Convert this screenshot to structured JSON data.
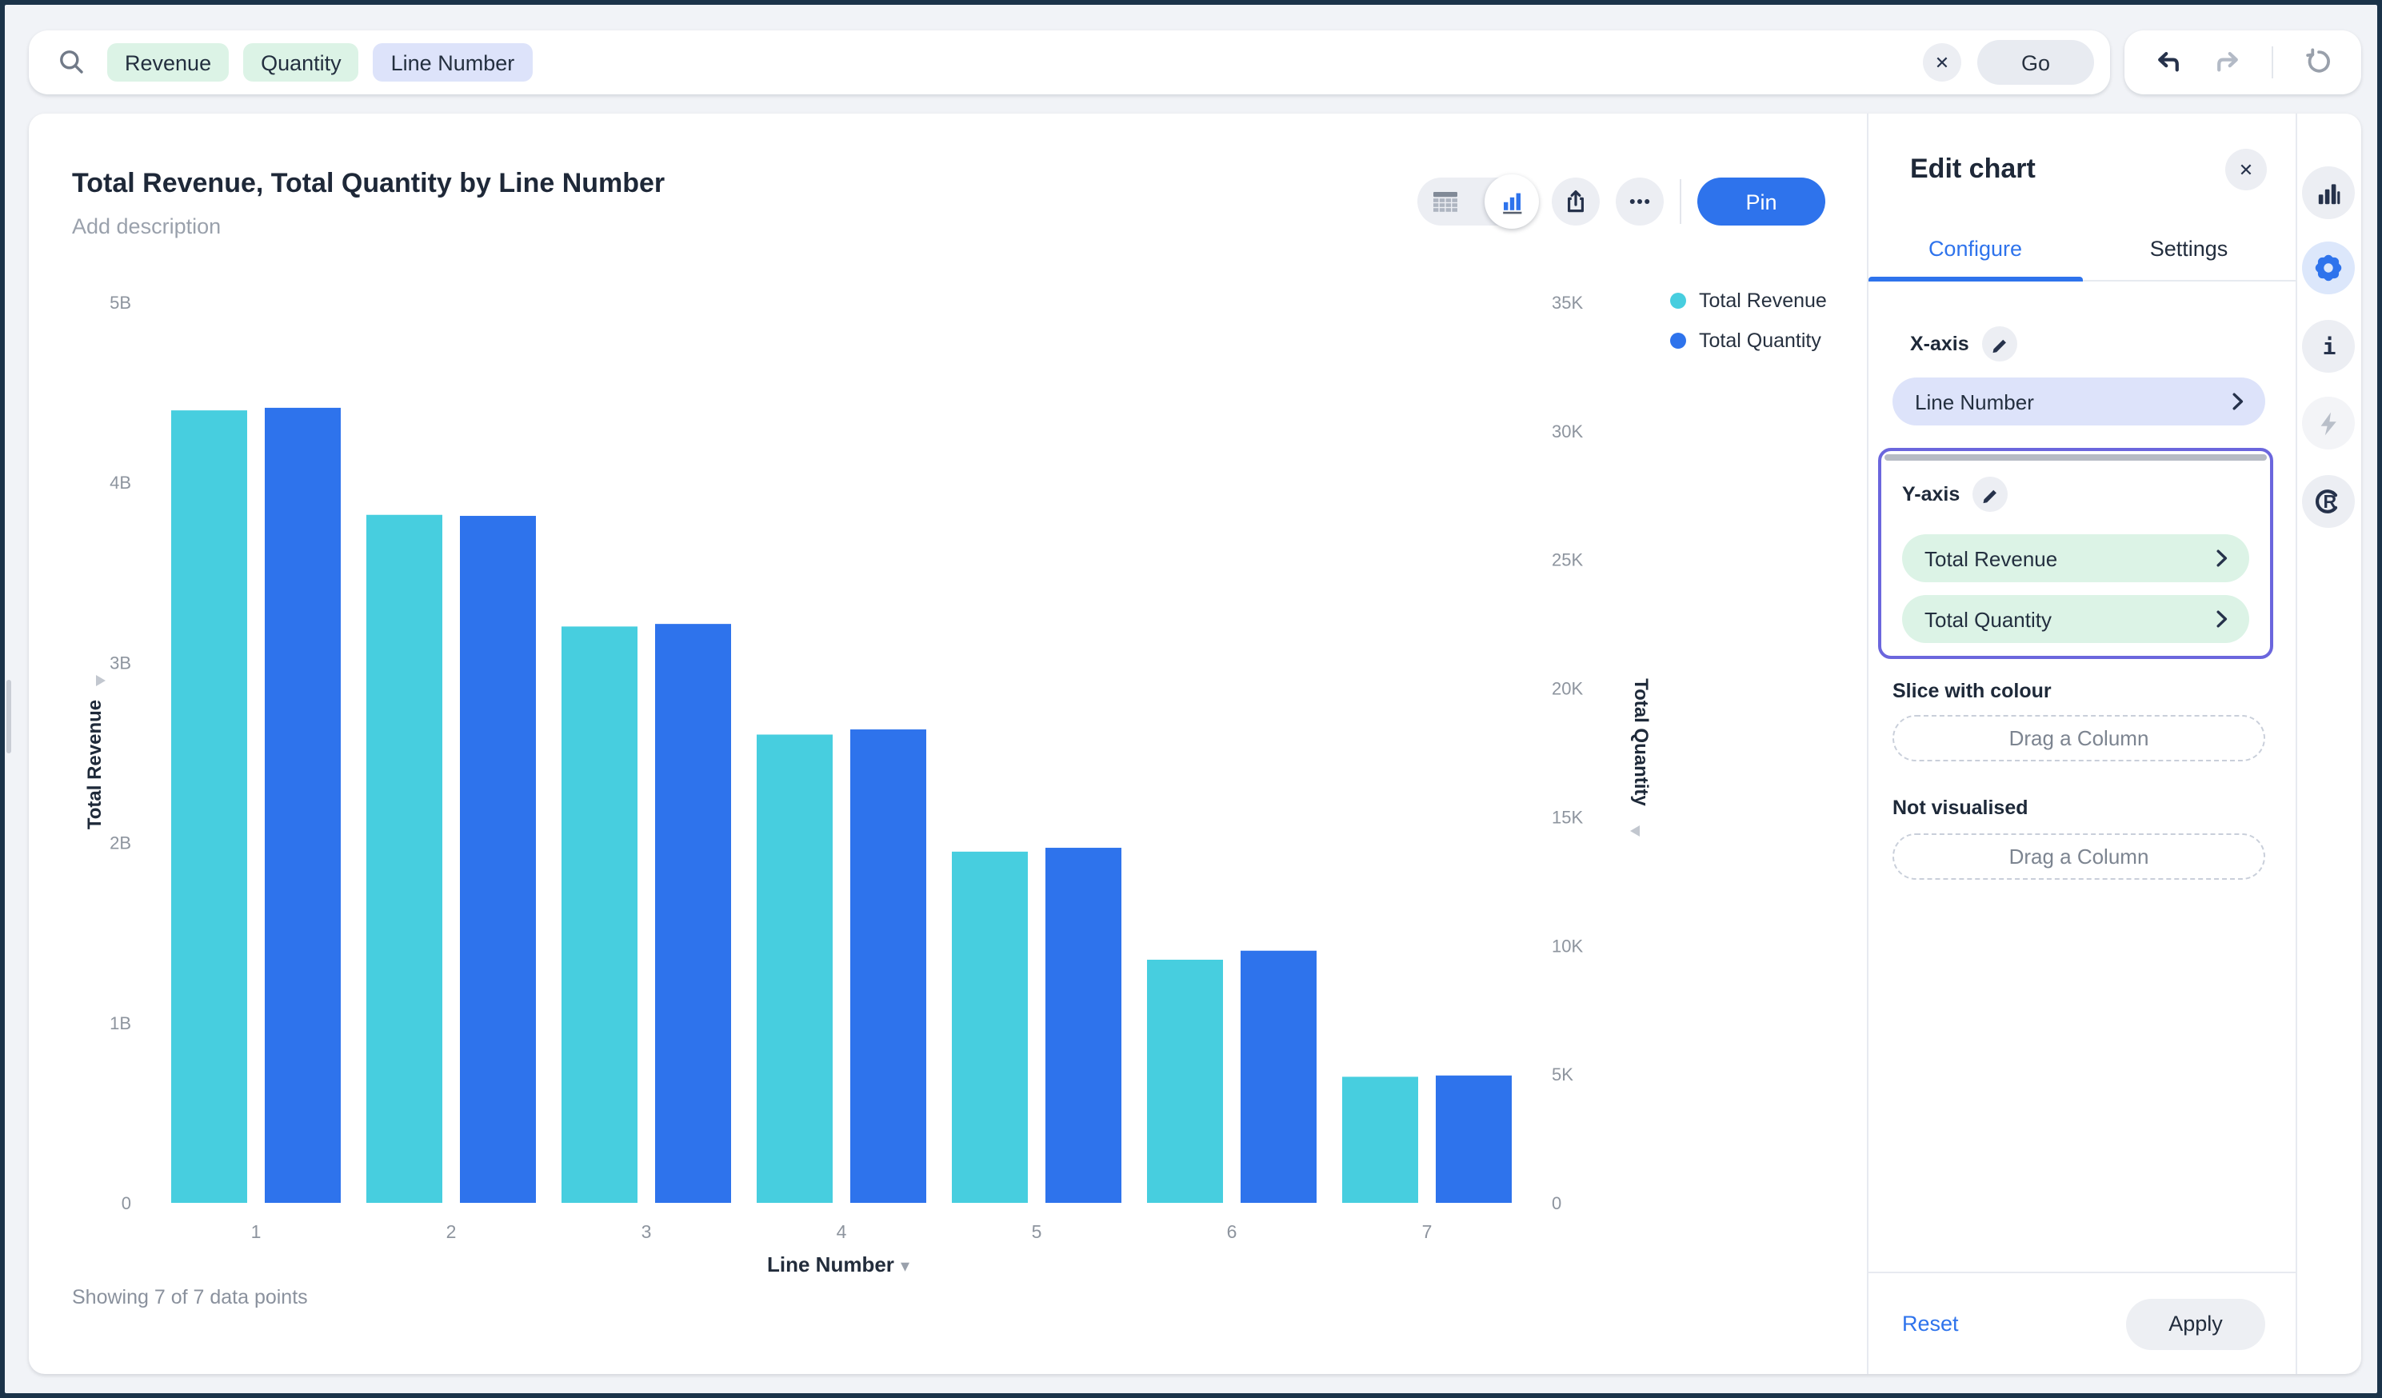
{
  "search_bar": {
    "tokens": [
      {
        "label": "Revenue",
        "kind": "measure"
      },
      {
        "label": "Quantity",
        "kind": "measure"
      },
      {
        "label": "Line Number",
        "kind": "attribute"
      }
    ],
    "clear_glyph": "✕",
    "go_label": "Go"
  },
  "chart_header": {
    "title": "Total Revenue, Total Quantity by Line Number",
    "description_placeholder": "Add description",
    "pin_label": "Pin"
  },
  "chart_footer": {
    "showing_text": "Showing 7 of 7 data points",
    "x_axis_selector_label": "Line Number"
  },
  "chart_data": {
    "type": "bar",
    "title": "Total Revenue, Total Quantity by Line Number",
    "categories": [
      "1",
      "2",
      "3",
      "4",
      "5",
      "6",
      "7"
    ],
    "series": [
      {
        "name": "Total Revenue",
        "axis": "left",
        "color": "#47CEDF",
        "values": [
          4400000000,
          3820000000,
          3200000000,
          2600000000,
          1950000000,
          1350000000,
          700000000
        ]
      },
      {
        "name": "Total Quantity",
        "axis": "right",
        "color": "#2E73EC",
        "values": [
          30900,
          26700,
          22500,
          18400,
          13800,
          9800,
          4950
        ]
      }
    ],
    "left_axis": {
      "title": "Total Revenue",
      "max": 5000000000,
      "ticks": [
        "0",
        "1B",
        "2B",
        "3B",
        "4B",
        "5B"
      ]
    },
    "right_axis": {
      "title": "Total Quantity",
      "max": 35000,
      "ticks": [
        "0",
        "5K",
        "10K",
        "15K",
        "20K",
        "25K",
        "30K",
        "35K"
      ]
    },
    "xlabel": "Line Number",
    "legend_position": "top-right",
    "grid": false
  },
  "edit_panel": {
    "title": "Edit chart",
    "close_glyph": "✕",
    "tabs": [
      {
        "label": "Configure",
        "active": true
      },
      {
        "label": "Settings",
        "active": false
      }
    ],
    "x_axis": {
      "label": "X-axis",
      "fields": [
        {
          "label": "Line Number",
          "kind": "attribute"
        }
      ]
    },
    "y_axis": {
      "label": "Y-axis",
      "highlighted": true,
      "fields": [
        {
          "label": "Total Revenue",
          "kind": "measure"
        },
        {
          "label": "Total Quantity",
          "kind": "measure"
        }
      ]
    },
    "slice": {
      "label": "Slice with colour",
      "placeholder": "Drag a Column"
    },
    "not_visualised": {
      "label": "Not visualised",
      "placeholder": "Drag a Column"
    },
    "reset_label": "Reset",
    "apply_label": "Apply"
  },
  "icon_rail": {
    "items": [
      "chart-type",
      "chart-settings",
      "chart-info",
      "spot-iq",
      "r-analysis"
    ],
    "active_item": "chart-settings"
  },
  "icons": {
    "search": "magnifier",
    "clear": "✕",
    "undo": "arrow-corner-left",
    "redo": "arrow-corner-right",
    "restore": "circular-arrow",
    "table-view": "grid",
    "chart-view": "bars",
    "share": "box-arrow-up",
    "more": "ellipsis",
    "edit": "pencil",
    "field-open": "chevron-right",
    "x-axis-caret": "▾",
    "left-axis-pointer": "▸",
    "right-axis-pointer": "◂"
  },
  "colors": {
    "accent_blue": "#2E73EC",
    "series_cyan": "#47CEDF",
    "series_blue": "#2E73EC",
    "measure_token_bg": "#DCF3E6",
    "attribute_token_bg": "#DDE3FA",
    "highlight_purple": "#6B66DD",
    "page_bg": "#F1F3F7",
    "frame": "#1B3349"
  }
}
